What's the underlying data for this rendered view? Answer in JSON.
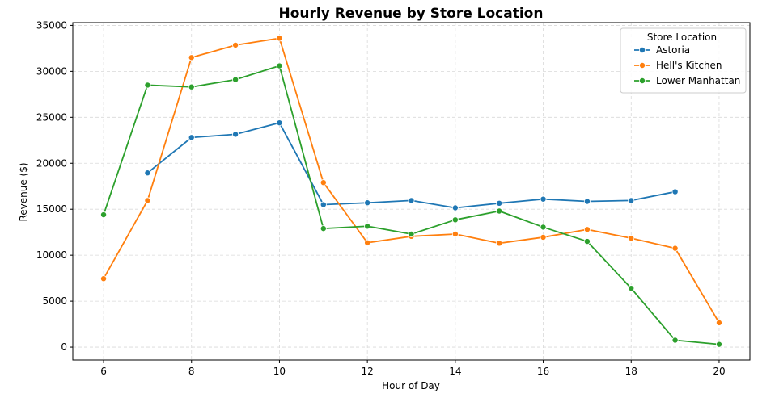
{
  "chart_data": {
    "type": "line",
    "title": "Hourly Revenue by Store Location",
    "xlabel": "Hour of Day",
    "ylabel": "Revenue ($)",
    "xlim": [
      5.3,
      20.7
    ],
    "ylim": [
      -1400,
      35300
    ],
    "xticks": [
      6,
      8,
      10,
      12,
      14,
      16,
      18,
      20
    ],
    "yticks": [
      0,
      5000,
      10000,
      15000,
      20000,
      25000,
      30000,
      35000
    ],
    "grid": true,
    "legend": {
      "title": "Store Location",
      "position": "top-right"
    },
    "series": [
      {
        "name": "Astoria",
        "color": "#1f77b4",
        "x": [
          7,
          8,
          9,
          10,
          11,
          12,
          13,
          14,
          15,
          16,
          17,
          18,
          19
        ],
        "y": [
          18950,
          22800,
          23150,
          24400,
          15500,
          15700,
          15950,
          15150,
          15650,
          16100,
          15850,
          15950,
          16900
        ]
      },
      {
        "name": "Hell's Kitchen",
        "color": "#ff7f0e",
        "x": [
          6,
          7,
          8,
          9,
          10,
          11,
          12,
          13,
          14,
          15,
          16,
          17,
          18,
          19,
          20
        ],
        "y": [
          7450,
          15950,
          31500,
          32850,
          33600,
          17900,
          11350,
          12050,
          12300,
          11300,
          11950,
          12800,
          11850,
          10750,
          2650
        ]
      },
      {
        "name": "Lower Manhattan",
        "color": "#2ca02c",
        "x": [
          6,
          7,
          8,
          9,
          10,
          11,
          12,
          13,
          14,
          15,
          16,
          17,
          18,
          19,
          20
        ],
        "y": [
          14400,
          28500,
          28300,
          29100,
          30600,
          12900,
          13150,
          12300,
          13850,
          14800,
          13050,
          11500,
          6400,
          750,
          300
        ]
      }
    ]
  }
}
